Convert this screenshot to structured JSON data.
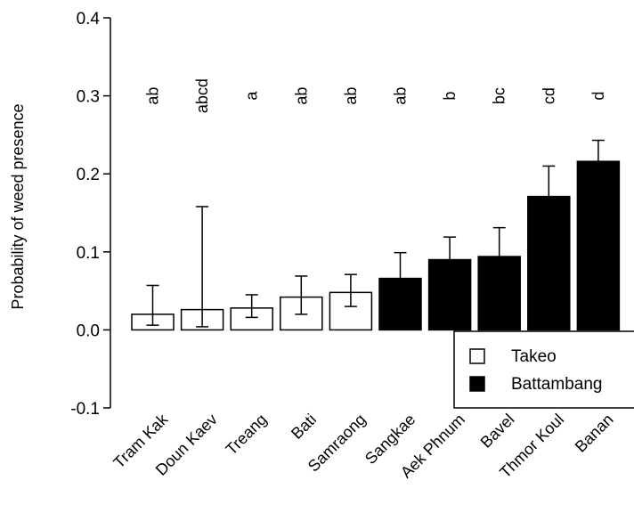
{
  "chart_data": {
    "type": "bar",
    "title": "",
    "xlabel": "",
    "ylabel": "Probability of weed presence",
    "ylim": [
      -0.1,
      0.4
    ],
    "yticks": [
      "-0.1",
      "0.0",
      "0.1",
      "0.2",
      "0.3",
      "0.4"
    ],
    "grid": false,
    "legend_position": "bottom-right",
    "categories": [
      "Tram Kak",
      "Doun Kaev",
      "Treang",
      "Bati",
      "Samraong",
      "Sangkae",
      "Aek Phnum",
      "Bavel",
      "Thmor Koul",
      "Banan"
    ],
    "values": [
      0.02,
      0.026,
      0.028,
      0.042,
      0.048,
      0.066,
      0.09,
      0.094,
      0.171,
      0.216
    ],
    "error_low": [
      0.006,
      0.004,
      0.016,
      0.02,
      0.03,
      0.04,
      0.06,
      0.062,
      0.13,
      0.19
    ],
    "error_high": [
      0.057,
      0.158,
      0.045,
      0.069,
      0.071,
      0.099,
      0.119,
      0.131,
      0.21,
      0.243
    ],
    "significance": [
      "ab",
      "abcd",
      "a",
      "ab",
      "ab",
      "ab",
      "b",
      "bc",
      "cd",
      "d"
    ],
    "province": [
      "Takeo",
      "Takeo",
      "Takeo",
      "Takeo",
      "Takeo",
      "Battambang",
      "Battambang",
      "Battambang",
      "Battambang",
      "Battambang"
    ],
    "legend": [
      {
        "name": "Takeo",
        "color": "#ffffff"
      },
      {
        "name": "Battambang",
        "color": "#000000"
      }
    ]
  }
}
